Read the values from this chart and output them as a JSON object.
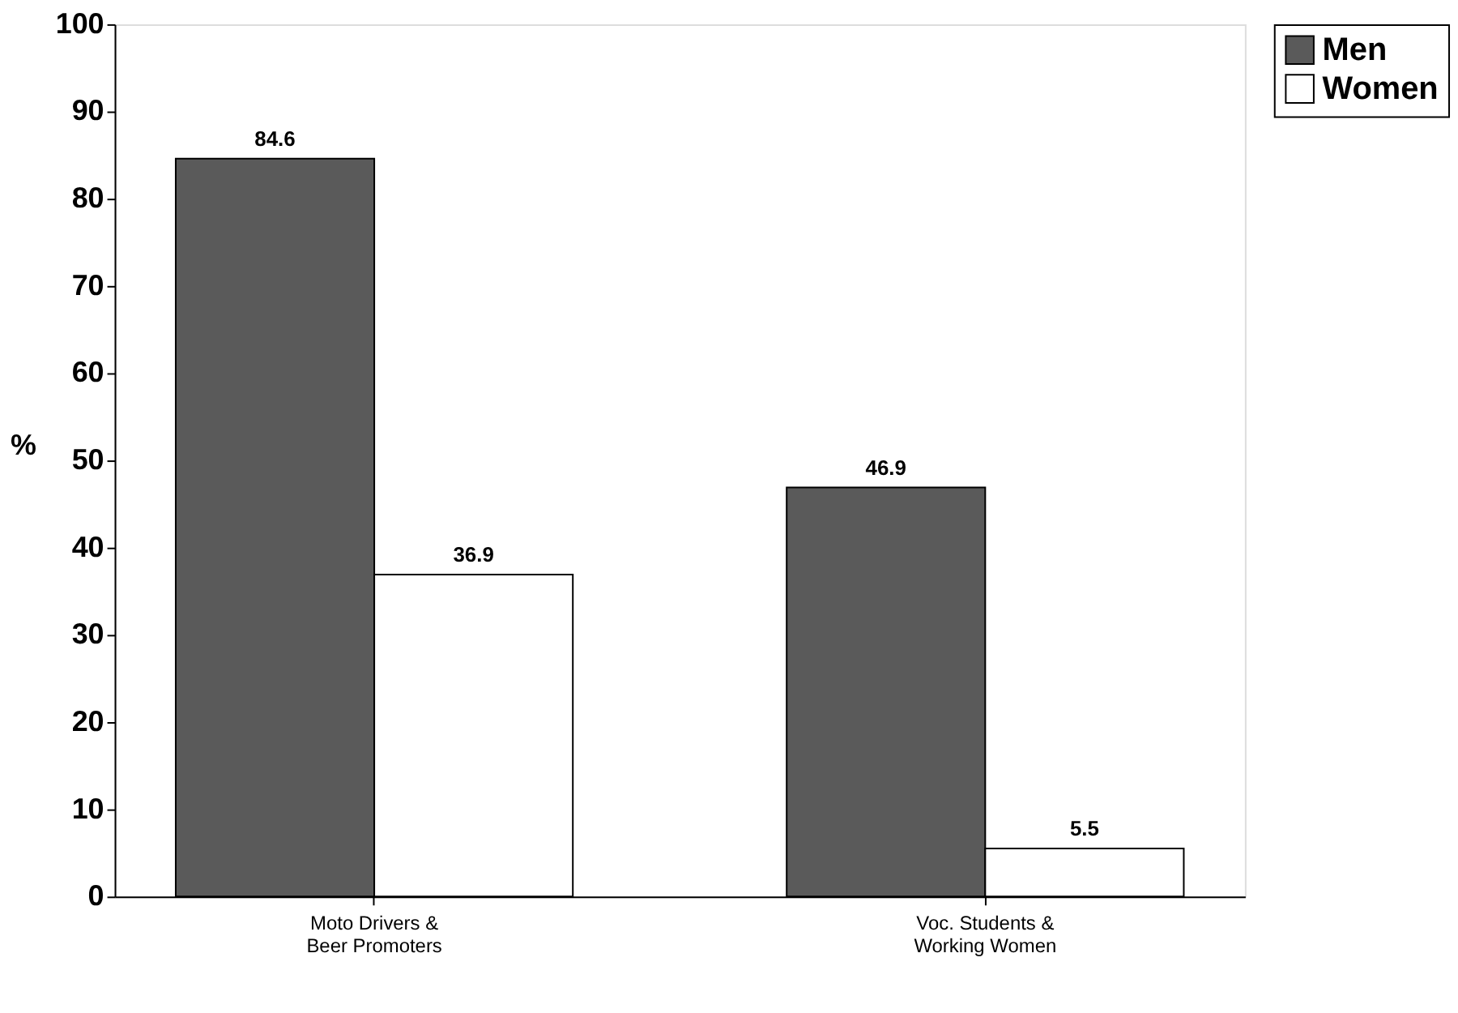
{
  "chart_data": {
    "type": "bar",
    "ylabel": "%",
    "categories": [
      "Moto Drivers &\nBeer Promoters",
      "Voc. Students &\nWorking Women"
    ],
    "series": [
      {
        "name": "Men",
        "color": "#5a5a5a",
        "values": [
          84.6,
          46.9
        ]
      },
      {
        "name": "Women",
        "color": "#ffffff",
        "values": [
          36.9,
          5.5
        ]
      }
    ],
    "ylim": [
      0,
      100
    ],
    "yticks": [
      0,
      10,
      20,
      30,
      40,
      50,
      60,
      70,
      80,
      90,
      100
    ],
    "grid": false,
    "legend": "right",
    "data_labels": true
  }
}
